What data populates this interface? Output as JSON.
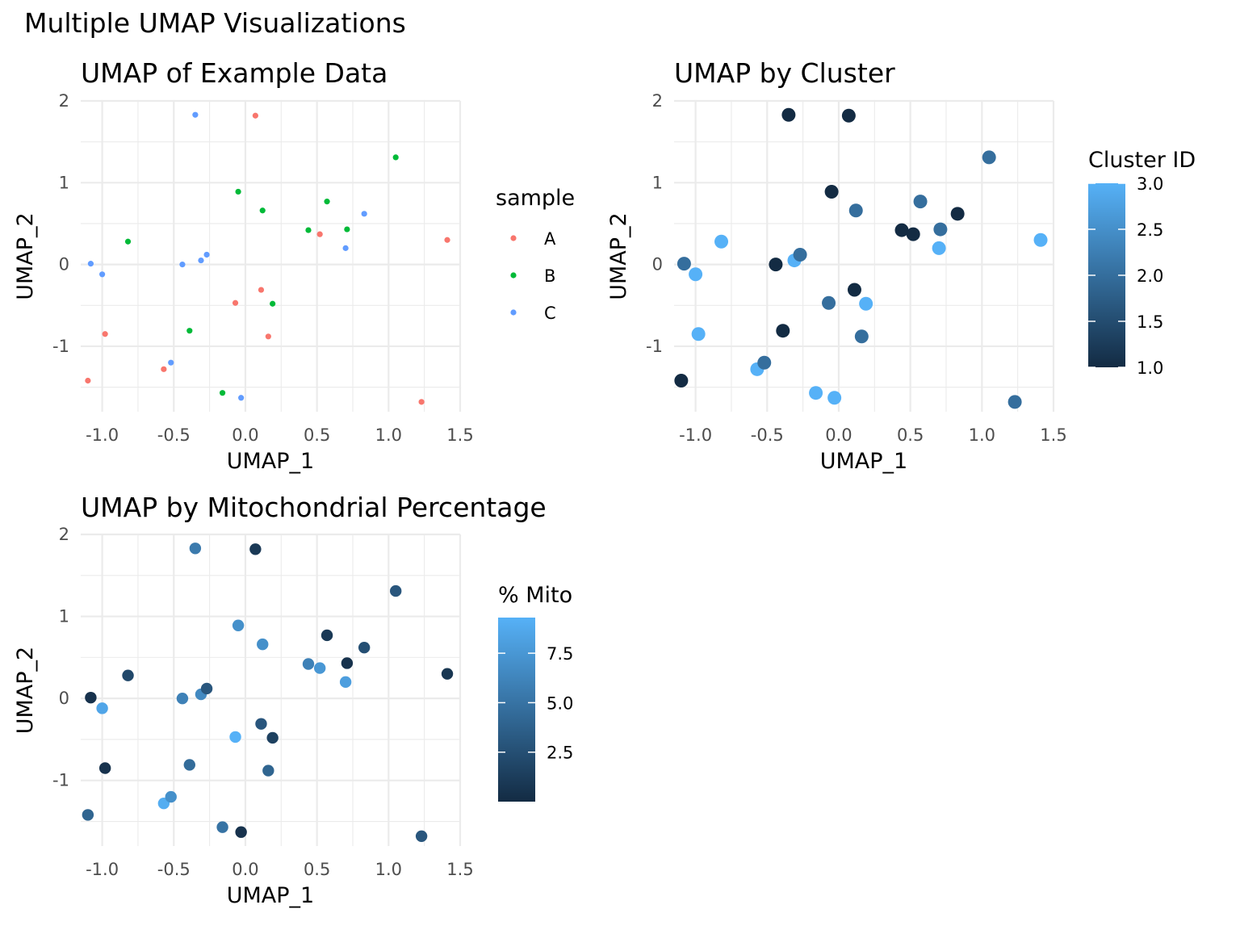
{
  "title": "Multiple UMAP Visualizations",
  "x": [
    -1.1,
    -1.0,
    -0.98,
    -0.82,
    -0.57,
    -0.52,
    -0.44,
    -0.39,
    -0.35,
    -0.31,
    -0.27,
    -0.16,
    -0.07,
    -0.05,
    -0.03,
    0.07,
    0.11,
    0.12,
    0.16,
    0.19,
    0.44,
    0.52,
    0.57,
    0.7,
    0.71,
    0.83,
    1.05,
    1.23,
    1.41,
    -1.08
  ],
  "y": [
    -1.42,
    -0.12,
    -0.85,
    0.28,
    -1.28,
    -1.2,
    0.0,
    -0.81,
    1.83,
    0.05,
    0.12,
    -1.57,
    -0.47,
    0.89,
    -1.63,
    1.82,
    -0.31,
    0.66,
    -0.88,
    -0.48,
    0.42,
    0.37,
    0.77,
    0.2,
    0.43,
    0.62,
    1.31,
    -1.68,
    0.3,
    0.01
  ],
  "sample": [
    "A",
    "C",
    "A",
    "B",
    "A",
    "C",
    "C",
    "B",
    "C",
    "C",
    "C",
    "B",
    "A",
    "B",
    "C",
    "A",
    "A",
    "B",
    "A",
    "B",
    "B",
    "A",
    "B",
    "C",
    "B",
    "C",
    "B",
    "A",
    "A",
    "C"
  ],
  "cluster": [
    1,
    3,
    3,
    3,
    3,
    2,
    1,
    1,
    1,
    3,
    2,
    3,
    2,
    1,
    3,
    1,
    1,
    2,
    2,
    3,
    1,
    1,
    2,
    3,
    2,
    1,
    2,
    2,
    3,
    2
  ],
  "mito": [
    4.0,
    8.5,
    0.5,
    2.0,
    9.0,
    7.0,
    6.0,
    4.5,
    5.5,
    6.5,
    3.0,
    5.0,
    9.3,
    7.0,
    0.5,
    1.0,
    3.0,
    7.0,
    4.0,
    1.5,
    6.0,
    7.5,
    1.0,
    8.0,
    0.5,
    2.5,
    3.0,
    3.0,
    0.8,
    0.5
  ],
  "sample_colors": {
    "A": "#F8766D",
    "B": "#00BA38",
    "C": "#619CFF"
  },
  "gradient": {
    "low": "#132B43",
    "high": "#56B1F7"
  },
  "chart_data": [
    {
      "type": "scatter",
      "title": "UMAP of Example Data",
      "xlabel": "UMAP_1",
      "ylabel": "UMAP_2",
      "xlim": [
        -1.15,
        1.5
      ],
      "ylim": [
        -1.8,
        2.0
      ],
      "xticks": [
        "-1.0",
        "-0.5",
        "0.0",
        "0.5",
        "1.0",
        "1.5"
      ],
      "yticks": [
        "-1",
        "0",
        "1",
        "2"
      ],
      "color_by": "sample",
      "legend_title": "sample",
      "legend_labels": [
        "A",
        "B",
        "C"
      ],
      "legend_placement": "right",
      "grid": true
    },
    {
      "type": "scatter",
      "title": "UMAP by Cluster",
      "xlabel": "UMAP_1",
      "ylabel": "UMAP_2",
      "xlim": [
        -1.15,
        1.5
      ],
      "ylim": [
        -1.8,
        2.0
      ],
      "xticks": [
        "-1.0",
        "-0.5",
        "0.0",
        "0.5",
        "1.0",
        "1.5"
      ],
      "yticks": [
        "-1",
        "0",
        "1",
        "2"
      ],
      "color_by": "cluster",
      "legend_title": "Cluster ID",
      "colorbar_range": [
        1.0,
        3.0
      ],
      "colorbar_ticks": [
        "1.0",
        "1.5",
        "2.0",
        "2.5",
        "3.0"
      ],
      "legend_placement": "right",
      "grid": true
    },
    {
      "type": "scatter",
      "title": "UMAP by Mitochondrial Percentage",
      "xlabel": "UMAP_1",
      "ylabel": "UMAP_2",
      "xlim": [
        -1.15,
        1.5
      ],
      "ylim": [
        -1.8,
        2.0
      ],
      "xticks": [
        "-1.0",
        "-0.5",
        "0.0",
        "0.5",
        "1.0",
        "1.5"
      ],
      "yticks": [
        "-1",
        "0",
        "1",
        "2"
      ],
      "color_by": "mito",
      "legend_title": "% Mito",
      "colorbar_range": [
        0.0,
        9.3
      ],
      "colorbar_ticks": [
        "2.5",
        "5.0",
        "7.5"
      ],
      "legend_placement": "right",
      "grid": true
    }
  ]
}
